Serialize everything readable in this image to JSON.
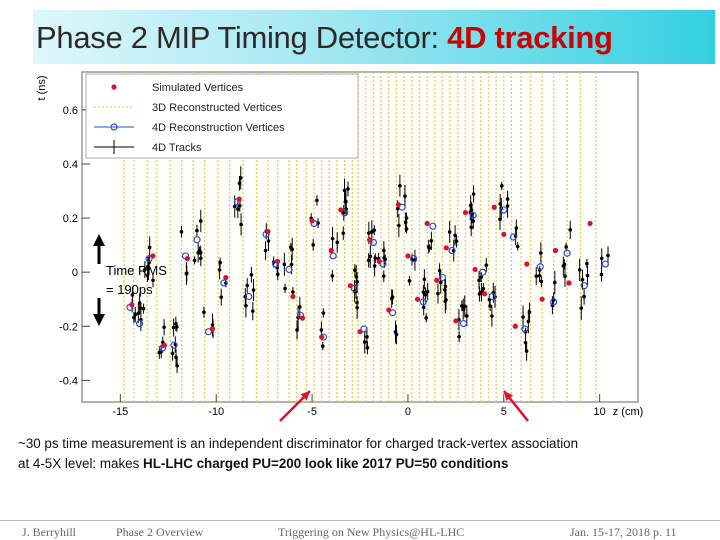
{
  "slide": {
    "title_main": "Phase 2 MIP Timing Detector: ",
    "title_highlight": "4D tracking",
    "caption_line1": "~30 ps time measurement is an independent discriminator for charged track-vertex association",
    "caption_line2_prefix": "at 4-5X level:  makes ",
    "caption_line2_bold": "HL-LHC charged PU=200 look like 2017 PU=50 conditions",
    "footer": {
      "author": "J. Berryhill",
      "section": "Phase 2 Overview",
      "event": "Triggering on New Physics@HL-LHC",
      "date_page": "Jan. 15-17, 2018   p. 11"
    }
  },
  "chart_data": {
    "type": "scatter",
    "xlabel": "z (cm)",
    "ylabel": "t (ns)",
    "xlim": [
      -17,
      12
    ],
    "ylim": [
      -0.48,
      0.74
    ],
    "x_ticks": [
      -15,
      -10,
      -5,
      0,
      5,
      10
    ],
    "y_ticks": [
      -0.4,
      -0.2,
      0,
      0.2,
      0.4,
      0.6
    ],
    "legend": {
      "placement": "top-left",
      "entries": [
        "Simulated Vertices",
        "3D Reconstructed Vertices",
        "4D Reconstruction Vertices",
        "4D Tracks"
      ]
    },
    "annotation": {
      "line1": "Time RMS",
      "line2": "= 190ps"
    },
    "colors": {
      "simulated": "#e0102a",
      "reco3d": "#e8cf45",
      "reco4d": "#2a4fd0",
      "tracks": "#000000",
      "arrows": "#e0102a"
    },
    "series": [
      {
        "name": "4D Reconstruction Vertices",
        "x": [
          -14.5,
          -14.0,
          -13.5,
          -12.8,
          -12.2,
          -11.6,
          -11.0,
          -10.4,
          -9.6,
          -8.9,
          -8.3,
          -7.4,
          -6.9,
          -6.2,
          -5.6,
          -4.9,
          -4.4,
          -3.9,
          -3.3,
          -2.8,
          -2.3,
          -1.8,
          -1.3,
          -0.8,
          -0.3,
          0.3,
          0.8,
          1.3,
          1.8,
          2.3,
          2.9,
          3.4,
          3.9,
          4.4,
          5.0,
          5.5,
          6.1,
          6.9,
          7.6,
          8.3,
          9.2,
          10.3
        ],
        "y": [
          -0.13,
          -0.19,
          0.05,
          -0.28,
          -0.27,
          0.06,
          0.12,
          -0.22,
          -0.04,
          0.26,
          -0.09,
          0.14,
          0.03,
          0.01,
          -0.16,
          0.18,
          -0.24,
          0.06,
          0.22,
          -0.06,
          -0.21,
          0.11,
          0.03,
          -0.15,
          0.24,
          0.05,
          -0.11,
          0.17,
          -0.02,
          0.08,
          -0.19,
          0.21,
          0.0,
          -0.09,
          0.23,
          0.13,
          -0.21,
          0.02,
          -0.11,
          0.07,
          -0.05,
          0.03
        ]
      },
      {
        "name": "Simulated Vertices",
        "x": [
          -14.4,
          -13.3,
          -12.7,
          -11.5,
          -10.2,
          -9.5,
          -8.8,
          -7.3,
          -6.8,
          -6.0,
          -5.5,
          -5.0,
          -4.5,
          -4.0,
          -3.5,
          -3.0,
          -2.5,
          -2.0,
          -1.5,
          -1.0,
          -0.5,
          0.0,
          0.5,
          1.0,
          1.5,
          2.0,
          2.5,
          3.0,
          3.5,
          4.0,
          4.5,
          5.0,
          5.6,
          6.2,
          7.0,
          7.7,
          8.4,
          9.5
        ],
        "y": [
          -0.12,
          0.06,
          -0.27,
          0.05,
          -0.21,
          -0.02,
          0.27,
          0.15,
          0.04,
          -0.09,
          -0.17,
          0.19,
          -0.24,
          0.08,
          0.23,
          -0.05,
          -0.22,
          0.12,
          0.04,
          -0.14,
          0.25,
          0.06,
          -0.1,
          0.18,
          -0.03,
          0.09,
          -0.18,
          0.22,
          0.01,
          -0.08,
          0.24,
          0.14,
          -0.2,
          0.03,
          -0.1,
          0.08,
          -0.04,
          0.18
        ]
      }
    ],
    "reco3d_z": [
      -14.8,
      -14.3,
      -13.6,
      -13.1,
      -12.4,
      -11.8,
      -11.2,
      -10.6,
      -9.9,
      -9.3,
      -8.6,
      -7.9,
      -7.3,
      -6.8,
      -6.2,
      -5.8,
      -5.3,
      -4.9,
      -4.5,
      -4.1,
      -3.7,
      -3.3,
      -2.9,
      -2.6,
      -2.2,
      -1.8,
      -1.4,
      -1.0,
      -0.6,
      -0.2,
      0.2,
      0.6,
      1.0,
      1.4,
      1.8,
      2.2,
      2.6,
      3.0,
      3.4,
      3.8,
      4.2,
      4.6,
      5.0,
      5.4,
      5.9,
      6.4,
      7.0,
      7.6,
      8.3,
      9.0,
      9.8
    ]
  }
}
